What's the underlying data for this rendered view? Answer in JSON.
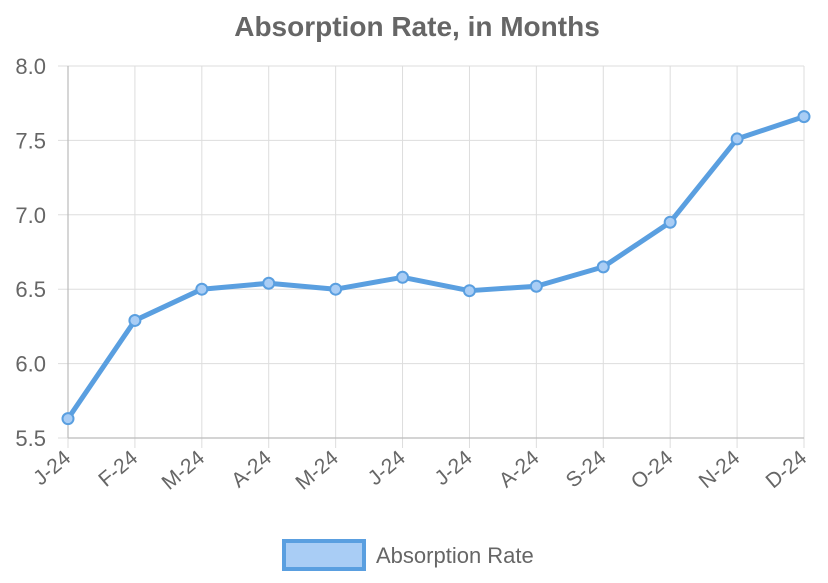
{
  "chart_data": {
    "type": "line",
    "title": "Absorption Rate, in Months",
    "xlabel": "",
    "ylabel": "",
    "categories": [
      "J-24",
      "F-24",
      "M-24",
      "A-24",
      "M-24",
      "J-24",
      "J-24",
      "A-24",
      "S-24",
      "O-24",
      "N-24",
      "D-24"
    ],
    "series": [
      {
        "name": "Absorption Rate",
        "values": [
          5.63,
          6.29,
          6.5,
          6.54,
          6.5,
          6.58,
          6.49,
          6.52,
          6.65,
          6.95,
          7.51,
          7.66
        ]
      }
    ],
    "ylim": [
      5.5,
      8.0
    ],
    "yticks": [
      "5.5",
      "6.0",
      "6.5",
      "7.0",
      "7.5",
      "8.0"
    ],
    "grid": true,
    "legend_position": "bottom-center",
    "colors": {
      "line": "#5a9fe0",
      "legend_fill": "#a9cdf5",
      "grid": "#dddddd",
      "text": "#666666",
      "title": "#666666"
    }
  }
}
